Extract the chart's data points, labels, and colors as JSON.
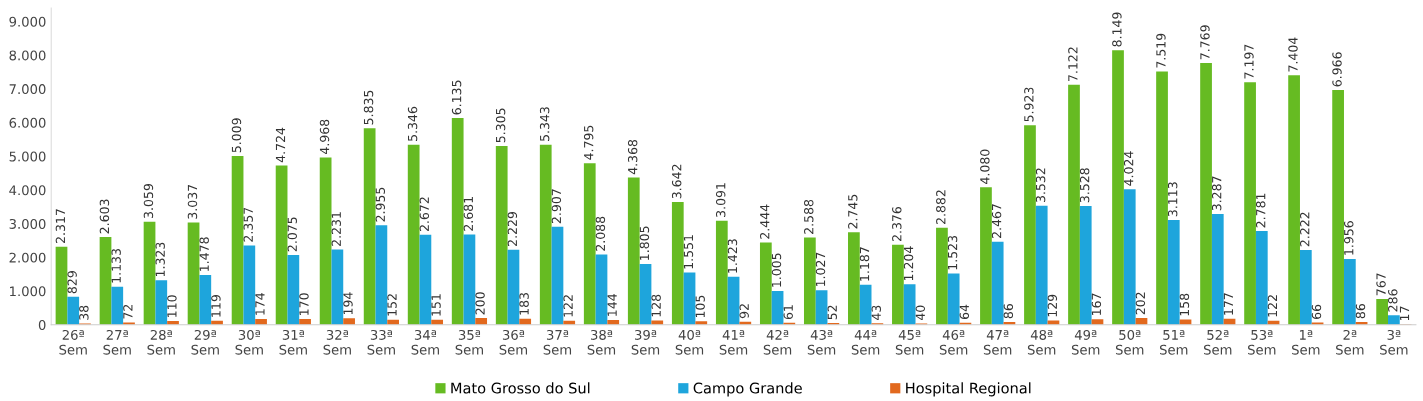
{
  "chart_data": {
    "type": "bar",
    "categories": [
      "26ª\nSem",
      "27ª\nSem",
      "28ª\nSem",
      "29ª\nSem",
      "30ª\nSem",
      "31ª\nSem",
      "32ª\nSem",
      "33ª\nSem",
      "34ª\nSem",
      "35ª\nSem",
      "36ª\nSem",
      "37ª\nSem",
      "38ª\nSem",
      "39ª\nSem",
      "40ª\nSem",
      "41ª\nSem",
      "42ª\nSem",
      "43ª\nSem",
      "44ª\nSem",
      "45ª\nSem",
      "46ª\nSem",
      "47ª\nSem",
      "48ª\nSem",
      "49ª\nSem",
      "50ª\nSem",
      "51ª\nSem",
      "52ª\nSem",
      "53ª\nSem",
      "1ª\nSem",
      "2ª\nSem",
      "3ª\nSem"
    ],
    "series": [
      {
        "name": "Mato Grosso do Sul",
        "color": "#66bb22",
        "values": [
          2317,
          2603,
          3059,
          3037,
          5009,
          4724,
          4968,
          5835,
          5346,
          6135,
          5305,
          5343,
          4795,
          4368,
          3642,
          3091,
          2444,
          2588,
          2745,
          2376,
          2882,
          4080,
          5923,
          7122,
          8149,
          7519,
          7769,
          7197,
          7404,
          6966,
          767
        ],
        "value_labels": [
          "2.317",
          "2.603",
          "3.059",
          "3.037",
          "5.009",
          "4.724",
          "4.968",
          "5.835",
          "5.346",
          "6.135",
          "5.305",
          "5.343",
          "4.795",
          "4.368",
          "3.642",
          "3.091",
          "2.444",
          "2.588",
          "2.745",
          "2.376",
          "2.882",
          "4.080",
          "5.923",
          "7.122",
          "8.149",
          "7.519",
          "7.769",
          "7.197",
          "7.404",
          "6.966",
          "767"
        ]
      },
      {
        "name": "Campo Grande",
        "color": "#1ea5dc",
        "values": [
          829,
          1133,
          1323,
          1478,
          2357,
          2075,
          2231,
          2955,
          2672,
          2681,
          2229,
          2907,
          2088,
          1805,
          1551,
          1423,
          1005,
          1027,
          1187,
          1204,
          1523,
          2467,
          3532,
          3528,
          4024,
          3113,
          3287,
          2781,
          2222,
          1956,
          286
        ],
        "value_labels": [
          "829",
          "1.133",
          "1.323",
          "1.478",
          "2.357",
          "2.075",
          "2.231",
          "2.955",
          "2.672",
          "2.681",
          "2.229",
          "2.907",
          "2.088",
          "1.805",
          "1.551",
          "1.423",
          "1.005",
          "1.027",
          "1.187",
          "1.204",
          "1.523",
          "2.467",
          "3.532",
          "3.528",
          "4.024",
          "3.113",
          "3.287",
          "2.781",
          "2.222",
          "1.956",
          "286"
        ]
      },
      {
        "name": "Hospital Regional",
        "color": "#e2691e",
        "values": [
          38,
          72,
          110,
          119,
          174,
          170,
          194,
          152,
          151,
          200,
          183,
          122,
          144,
          128,
          105,
          92,
          61,
          52,
          43,
          40,
          64,
          86,
          129,
          167,
          202,
          158,
          177,
          122,
          66,
          86,
          17
        ],
        "value_labels": [
          "38",
          "72",
          "110",
          "119",
          "174",
          "170",
          "194",
          "152",
          "151",
          "200",
          "183",
          "122",
          "144",
          "128",
          "105",
          "92",
          "61",
          "52",
          "43",
          "40",
          "64",
          "86",
          "129",
          "167",
          "202",
          "158",
          "177",
          "122",
          "66",
          "86",
          "17"
        ]
      }
    ],
    "ylim": [
      0,
      9400
    ],
    "yticks": [
      0,
      {
        "value": 1000,
        "label": "1.000"
      },
      {
        "value": 2000,
        "label": "2.000"
      },
      {
        "value": 3000,
        "label": "3.000"
      },
      {
        "value": 4000,
        "label": "4.000"
      },
      {
        "value": 5000,
        "label": "5.000"
      },
      {
        "value": 6000,
        "label": "6.000"
      },
      {
        "value": 7000,
        "label": "7.000"
      },
      {
        "value": 8000,
        "label": "8.000"
      },
      {
        "value": 9000,
        "label": "9.000"
      }
    ],
    "grid": false,
    "legend": "bottom"
  }
}
